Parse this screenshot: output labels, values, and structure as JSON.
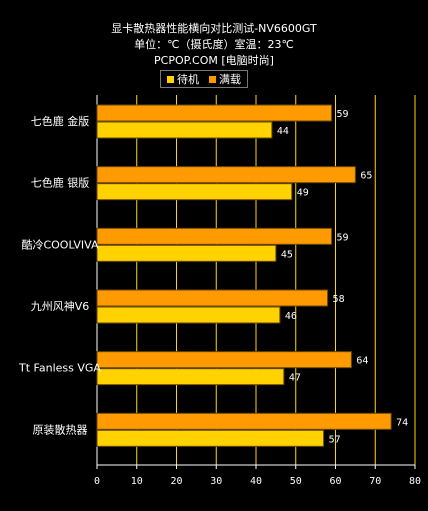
{
  "title": {
    "line1": "显卡散热器性能横向对比测试-NV6600GT",
    "line2": "单位：℃（摄氏度）室温：23℃",
    "line3": "PCPOP.COM [电脑时尚]"
  },
  "colors": {
    "background": "#000000",
    "gridline": "#FFD800",
    "idle": "#FFD200",
    "load": "#FF9A00",
    "bar_stroke": "#6B4A00"
  },
  "chart_data": {
    "type": "bar",
    "orientation": "horizontal",
    "categories": [
      "七色鹿 金版",
      "七色鹿 银版",
      "酷冷COOLVIVA",
      "九州风神V6",
      "Tt Fanless VGA",
      "原装散热器"
    ],
    "series": [
      {
        "name": "待机",
        "values": [
          44,
          49,
          45,
          46,
          47,
          57
        ]
      },
      {
        "name": "满载",
        "values": [
          59,
          65,
          59,
          58,
          64,
          74
        ]
      }
    ],
    "xlim": [
      0,
      80
    ],
    "xticks": [
      0,
      10,
      20,
      30,
      40,
      50,
      60,
      70,
      80
    ],
    "grid": true,
    "legend_position": "top-center"
  }
}
